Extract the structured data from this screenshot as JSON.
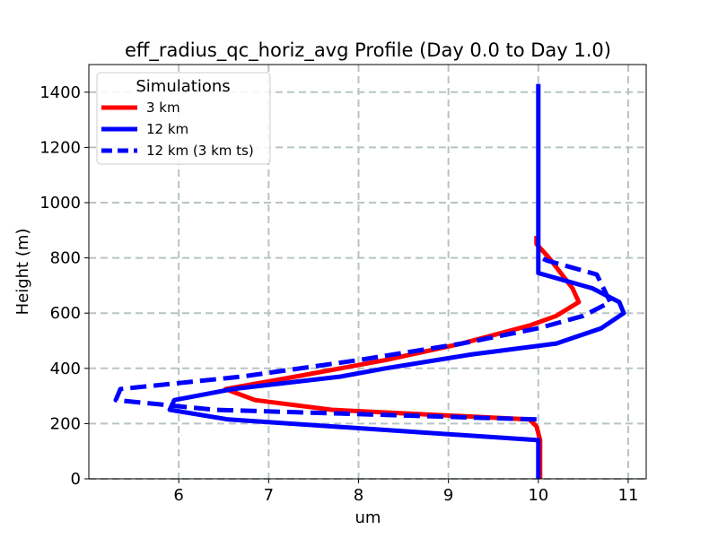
{
  "chart_data": {
    "type": "line",
    "title": "eff_radius_qc_horiz_avg Profile (Day 0.0 to Day 1.0)",
    "xlabel": "um",
    "ylabel": "Height (m)",
    "xlim": [
      5.0,
      11.2
    ],
    "ylim": [
      0,
      1500
    ],
    "x_ticks": [
      6,
      7,
      8,
      9,
      10,
      11
    ],
    "y_ticks": [
      0,
      200,
      400,
      600,
      800,
      1000,
      1200,
      1400
    ],
    "grid": true,
    "legend": {
      "title": "Simulations",
      "position": "top-left"
    },
    "series": [
      {
        "name": "3 km",
        "color": "#ff0000",
        "style": "solid",
        "points": [
          [
            10.02,
            0
          ],
          [
            10.02,
            70
          ],
          [
            10.02,
            140
          ],
          [
            9.98,
            190
          ],
          [
            9.9,
            215
          ],
          [
            7.7,
            250
          ],
          [
            6.85,
            285
          ],
          [
            6.52,
            325
          ],
          [
            7.3,
            370
          ],
          [
            8.3,
            430
          ],
          [
            9.15,
            490
          ],
          [
            9.9,
            555
          ],
          [
            10.2,
            590
          ],
          [
            10.45,
            640
          ],
          [
            10.38,
            690
          ],
          [
            10.12,
            800
          ],
          [
            9.98,
            850
          ],
          [
            9.98,
            880
          ]
        ]
      },
      {
        "name": "12 km",
        "color": "#0000ff",
        "style": "solid",
        "points": [
          [
            10.0,
            0
          ],
          [
            10.0,
            70
          ],
          [
            10.0,
            140
          ],
          [
            6.55,
            215
          ],
          [
            5.9,
            250
          ],
          [
            5.95,
            285
          ],
          [
            6.6,
            325
          ],
          [
            7.8,
            370
          ],
          [
            8.3,
            400
          ],
          [
            9.25,
            450
          ],
          [
            10.2,
            490
          ],
          [
            10.7,
            545
          ],
          [
            10.95,
            600
          ],
          [
            10.9,
            640
          ],
          [
            10.6,
            690
          ],
          [
            10.0,
            745
          ],
          [
            10.0,
            800
          ],
          [
            10.0,
            900
          ],
          [
            10.0,
            1100
          ],
          [
            10.0,
            1300
          ],
          [
            10.0,
            1430
          ]
        ]
      },
      {
        "name": "12 km (3 km ts)",
        "color": "#0000ff",
        "style": "dashed",
        "points": [
          [
            9.98,
            215
          ],
          [
            6.4,
            250
          ],
          [
            5.3,
            285
          ],
          [
            5.35,
            325
          ],
          [
            6.7,
            370
          ],
          [
            8.0,
            430
          ],
          [
            9.15,
            490
          ],
          [
            10.0,
            545
          ],
          [
            10.5,
            590
          ],
          [
            10.8,
            640
          ],
          [
            10.65,
            740
          ],
          [
            10.1,
            790
          ],
          [
            10.0,
            805
          ]
        ]
      }
    ]
  }
}
